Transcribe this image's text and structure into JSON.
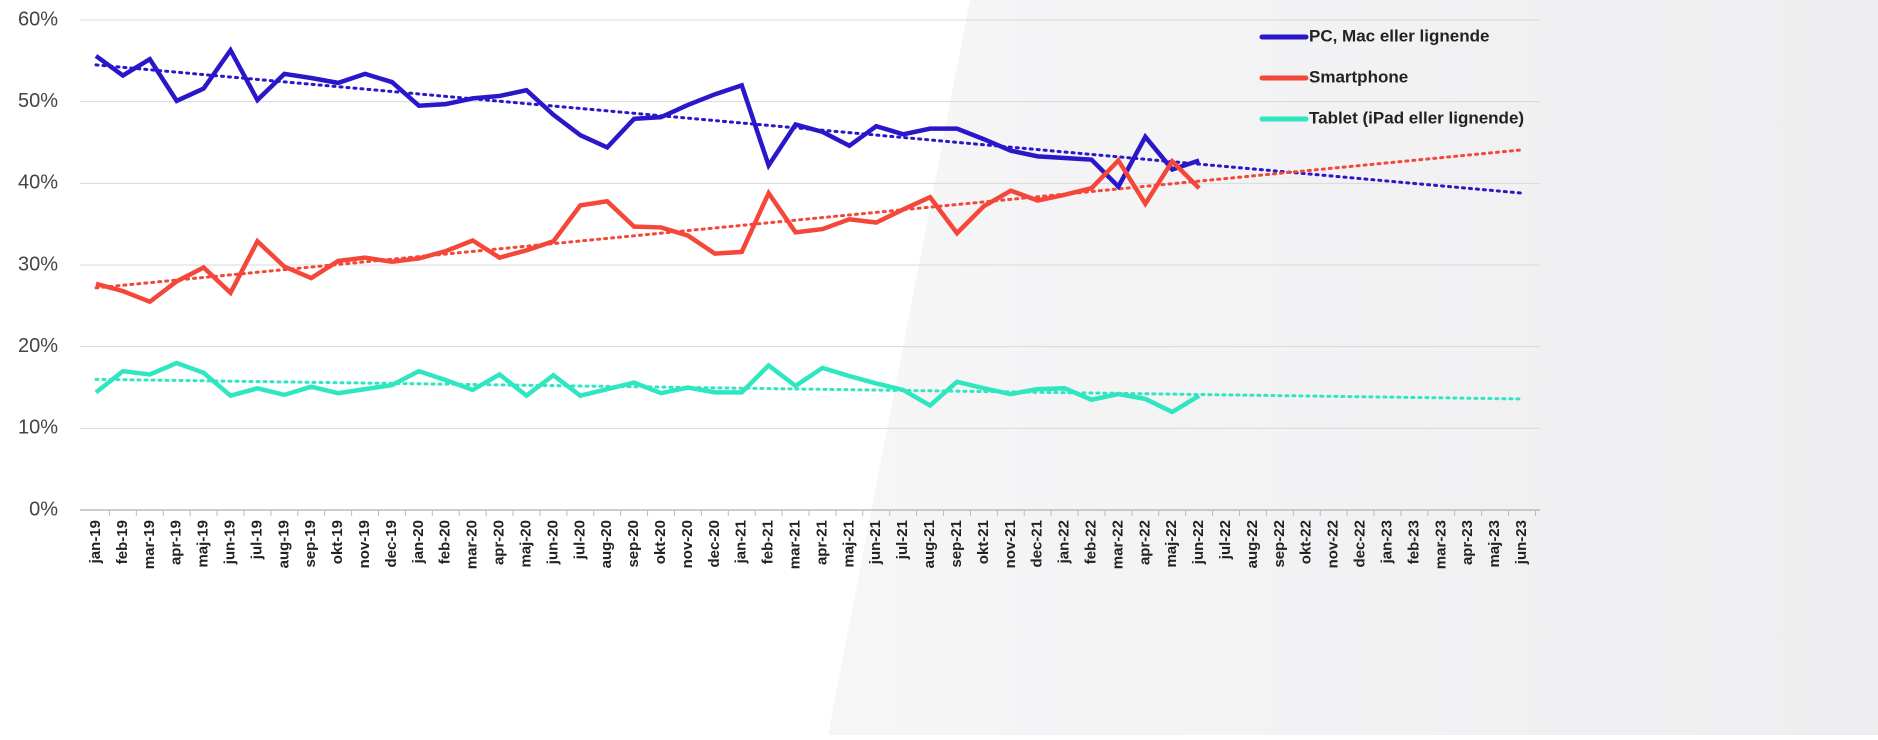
{
  "chart_data": {
    "type": "line",
    "categories": [
      "jan-19",
      "feb-19",
      "mar-19",
      "apr-19",
      "maj-19",
      "jun-19",
      "jul-19",
      "aug-19",
      "sep-19",
      "okt-19",
      "nov-19",
      "dec-19",
      "jan-20",
      "feb-20",
      "mar-20",
      "apr-20",
      "maj-20",
      "jun-20",
      "jul-20",
      "aug-20",
      "sep-20",
      "okt-20",
      "nov-20",
      "dec-20",
      "jan-21",
      "feb-21",
      "mar-21",
      "apr-21",
      "maj-21",
      "jun-21",
      "jul-21",
      "aug-21",
      "sep-21",
      "okt-21",
      "nov-21",
      "dec-21",
      "jan-22",
      "feb-22",
      "mar-22",
      "apr-22",
      "maj-22",
      "jun-22",
      "jul-22",
      "aug-22",
      "sep-22",
      "okt-22",
      "nov-22",
      "dec-22",
      "jan-23",
      "feb-23",
      "mar-23",
      "apr-23",
      "maj-23",
      "jun-23"
    ],
    "series": [
      {
        "name": "PC, Mac eller lignende",
        "color": "#2a17c9",
        "trend": [
          54.5,
          38.8
        ],
        "values": [
          55.6,
          53.2,
          55.2,
          50.1,
          51.6,
          56.3,
          50.2,
          53.4,
          52.9,
          52.3,
          53.4,
          52.4,
          49.5,
          49.7,
          50.4,
          50.7,
          51.4,
          48.4,
          45.9,
          44.4,
          47.9,
          48.1,
          49.6,
          50.9,
          52.0,
          42.2,
          47.2,
          46.3,
          44.6,
          47.0,
          46.0,
          46.7,
          46.7,
          45.4,
          44.0,
          43.3,
          43.1,
          42.9,
          39.6,
          45.7,
          41.7,
          42.8,
          null,
          null,
          null,
          null,
          null,
          null,
          null,
          null,
          null,
          null,
          null,
          null
        ]
      },
      {
        "name": "Smartphone",
        "color": "#f5463a",
        "trend": [
          27.2,
          44.1
        ],
        "values": [
          27.7,
          26.8,
          25.5,
          28.0,
          29.7,
          26.6,
          32.9,
          29.8,
          28.4,
          30.5,
          30.9,
          30.4,
          30.8,
          31.7,
          33.0,
          30.9,
          31.8,
          32.9,
          37.3,
          37.8,
          34.7,
          34.6,
          33.6,
          31.4,
          31.6,
          38.8,
          34.0,
          34.4,
          35.6,
          35.2,
          36.8,
          38.3,
          33.9,
          37.2,
          39.1,
          37.9,
          38.6,
          39.4,
          42.8,
          37.5,
          42.7,
          39.4,
          null,
          null,
          null,
          null,
          null,
          null,
          null,
          null,
          null,
          null,
          null,
          null
        ]
      },
      {
        "name": "Tablet (iPad eller lignende)",
        "color": "#2ee6c0",
        "trend": [
          16.0,
          13.6
        ],
        "values": [
          14.4,
          17.0,
          16.6,
          18.0,
          16.8,
          14.0,
          14.9,
          14.1,
          15.1,
          14.3,
          14.8,
          15.3,
          17.0,
          15.9,
          14.7,
          16.6,
          14.0,
          16.5,
          14.0,
          14.8,
          15.6,
          14.3,
          15.0,
          14.4,
          14.4,
          17.7,
          15.2,
          17.4,
          16.4,
          15.5,
          14.7,
          12.8,
          15.7,
          14.9,
          14.2,
          14.8,
          14.9,
          13.5,
          14.2,
          13.6,
          12.0,
          14.0,
          null,
          null,
          null,
          null,
          null,
          null,
          null,
          null,
          null,
          null,
          null,
          null
        ]
      }
    ],
    "ylim": [
      0,
      60
    ],
    "yticks": [
      {
        "value": 0,
        "label": "0%"
      },
      {
        "value": 10,
        "label": "10%"
      },
      {
        "value": 20,
        "label": "20%"
      },
      {
        "value": 30,
        "label": "30%"
      },
      {
        "value": 40,
        "label": "40%"
      },
      {
        "value": 50,
        "label": "50%"
      },
      {
        "value": 60,
        "label": "60%"
      }
    ],
    "grid": true,
    "legend": "top-right"
  }
}
